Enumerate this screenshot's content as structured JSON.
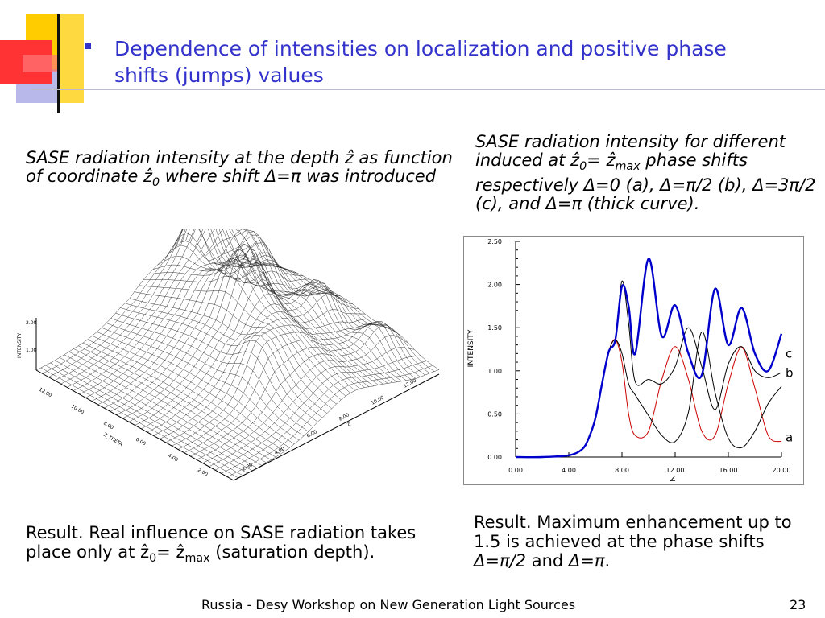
{
  "slide": {
    "bullet_char": "▪",
    "title": "Dependence of intensities on localization and positive phase shifts (jumps) values",
    "left_caption": {
      "t1": "SASE radiation intensity at the depth ",
      "zhat": "ẑ",
      "t2": " as function of coordinate ",
      "z0": "ẑ",
      "z0_sub": "0",
      "t3": " where shift ",
      "shift": "Δ=π",
      "t4": " was introduced"
    },
    "right_caption": {
      "t1": "SASE radiation intensity for different induced at ",
      "z0": "ẑ",
      "z0_sub": "0",
      "eq": "= ",
      "zmax": "ẑ",
      "zmax_sub": "max",
      "t2": " phase shifts respectively ",
      "d1": "Δ=0",
      "a": " (a), ",
      "d2": "Δ=π/2",
      "b": " (b),",
      "d3": "Δ=3π/2",
      "c": " (c), and ",
      "d4": "Δ=π",
      "thick": " (thick curve)."
    },
    "result_left": {
      "t1": "Result. Real influence on SASE radiation takes place only at ",
      "z0": "ẑ",
      "z0_sub": "0",
      "eq": "= ",
      "zmax": "ẑ",
      "zmax_sub": "max",
      "t2": "  (saturation depth)."
    },
    "result_right": {
      "t1": "Result. Maximum enhancement up to 1.5 is achieved at the phase shifts ",
      "d1": "Δ=π/2",
      "and": " and ",
      "d2": "Δ=π",
      "end": "."
    },
    "footer": "Russia - Desy Workshop on New Generation Light Sources",
    "page_number": "23",
    "colors": {
      "title": "#3333cc",
      "thick_curve": "#0000cc",
      "curve_a": "#cc0000",
      "curve_bc": "#000000",
      "deco_red": "#ff3333",
      "deco_yellow": "#ffcc00",
      "deco_blue": "#3333cc"
    }
  },
  "surface_plot": {
    "zaxis_label": "INTENSITY",
    "zticks": [
      "2.00",
      "1.00"
    ],
    "theta_label": "Z_THETA",
    "theta_ticks": [
      "12.00",
      "10.00",
      "8.00",
      "6.00",
      "4.00",
      "2.00"
    ],
    "z_label": "Z",
    "z_ticks": [
      "2.00",
      "4.00",
      "6.00",
      "8.00",
      "10.00",
      "12.00"
    ]
  },
  "chart_data": {
    "type": "line",
    "xlabel": "Z",
    "ylabel": "INTENSITY",
    "xlim": [
      0,
      20
    ],
    "ylim": [
      0,
      2.5
    ],
    "x_ticks": [
      "0.00",
      "4.00",
      "8.00",
      "12.00",
      "16.00",
      "20.00"
    ],
    "y_ticks": [
      "0.00",
      "0.50",
      "1.00",
      "1.50",
      "2.00",
      "2.50"
    ],
    "x": [
      0,
      2,
      4,
      5,
      5.5,
      6,
      6.5,
      7,
      7.5,
      8,
      8.5,
      9,
      10,
      11,
      12,
      13,
      14,
      15,
      16,
      17,
      18,
      19,
      20
    ],
    "series": [
      {
        "name": "a",
        "color": "#cc0000",
        "width": 1,
        "values": [
          0,
          0,
          0.02,
          0.09,
          0.22,
          0.45,
          0.85,
          1.22,
          1.36,
          1.1,
          0.5,
          0.25,
          0.3,
          0.9,
          1.28,
          0.9,
          0.3,
          0.25,
          0.85,
          1.27,
          0.8,
          0.25,
          0.18
        ]
      },
      {
        "name": "b",
        "color": "#000000",
        "width": 1,
        "values": [
          0,
          0,
          0.02,
          0.09,
          0.22,
          0.45,
          0.85,
          1.22,
          1.36,
          1.2,
          0.85,
          0.72,
          0.48,
          0.25,
          0.18,
          0.52,
          1.45,
          0.75,
          0.22,
          0.11,
          0.3,
          0.62,
          0.82
        ]
      },
      {
        "name": "c",
        "color": "#000000",
        "width": 1,
        "values": [
          0,
          0,
          0.02,
          0.09,
          0.22,
          0.45,
          0.85,
          1.22,
          1.36,
          2.04,
          1.55,
          0.87,
          0.9,
          0.85,
          1.05,
          1.5,
          1.05,
          0.55,
          1.08,
          1.28,
          1.0,
          0.92,
          0.98
        ]
      },
      {
        "name": "",
        "color": "#0000cc",
        "width": 2.4,
        "values": [
          0,
          0,
          0.02,
          0.09,
          0.22,
          0.45,
          0.85,
          1.22,
          1.36,
          1.98,
          1.75,
          1.2,
          2.3,
          1.4,
          1.76,
          1.2,
          0.95,
          1.95,
          1.3,
          1.73,
          1.2,
          1.0,
          1.43
        ]
      }
    ],
    "curve_labels": [
      {
        "text": "c",
        "x": 20.3,
        "y": 1.15
      },
      {
        "text": "b",
        "x": 20.3,
        "y": 0.93
      },
      {
        "text": "a",
        "x": 20.3,
        "y": 0.18
      }
    ],
    "grid": false
  }
}
